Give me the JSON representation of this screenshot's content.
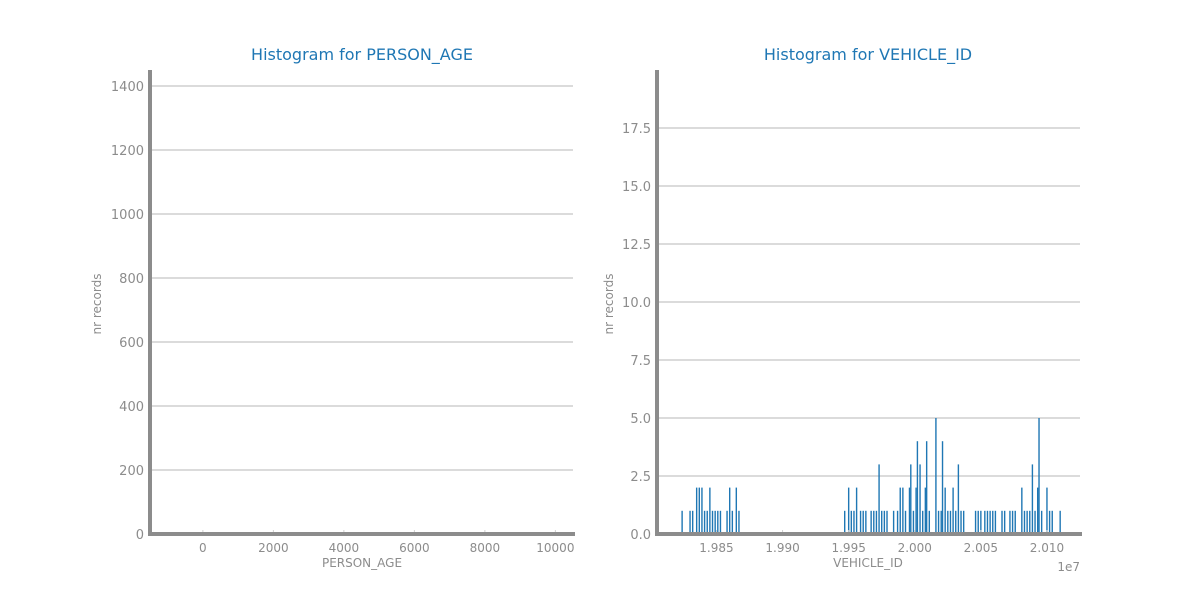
{
  "colors": {
    "bar": "#1f77b4",
    "title": "#1f77b4",
    "text": "#8c8c8c",
    "grid": "#cfcfcf",
    "spine": "#8c8c8c"
  },
  "chart_data": [
    {
      "type": "bar",
      "title": "Histogram for PERSON_AGE",
      "xlabel": "PERSON_AGE",
      "ylabel": "nr records",
      "xlim": [
        -1500,
        10500
      ],
      "ylim": [
        0,
        1450
      ],
      "xticks": [
        0,
        2000,
        4000,
        6000,
        8000,
        10000
      ],
      "xtick_labels": [
        "0",
        "2000",
        "4000",
        "6000",
        "8000",
        "10000"
      ],
      "yticks": [
        0,
        200,
        400,
        600,
        800,
        1000,
        1200,
        1400
      ],
      "ytick_labels": [
        "0",
        "200",
        "400",
        "600",
        "800",
        "1000",
        "1200",
        "1400"
      ],
      "grid": true,
      "bars": []
    },
    {
      "type": "bar",
      "title": "Histogram for VEHICLE_ID",
      "xlabel": "VEHICLE_ID",
      "ylabel": "nr records",
      "offset_label": "1e7",
      "xlim": [
        1.9805,
        2.0125
      ],
      "ylim": [
        0,
        20
      ],
      "xticks": [
        1.985,
        1.99,
        1.995,
        2.0,
        2.005,
        2.01
      ],
      "xtick_labels": [
        "1.985",
        "1.990",
        "1.995",
        "2.000",
        "2.005",
        "2.010"
      ],
      "yticks": [
        0,
        2.5,
        5,
        7.5,
        10,
        12.5,
        15,
        17.5
      ],
      "ytick_labels": [
        "0.0",
        "2.5",
        "5.0",
        "7.5",
        "10.0",
        "12.5",
        "15.0",
        "17.5"
      ],
      "grid": true,
      "bars": [
        {
          "x": 1.9824,
          "y": 1
        },
        {
          "x": 1.983,
          "y": 1
        },
        {
          "x": 1.9832,
          "y": 1
        },
        {
          "x": 1.9835,
          "y": 2
        },
        {
          "x": 1.9837,
          "y": 2
        },
        {
          "x": 1.9839,
          "y": 2
        },
        {
          "x": 1.9841,
          "y": 1
        },
        {
          "x": 1.9843,
          "y": 1
        },
        {
          "x": 1.9845,
          "y": 2
        },
        {
          "x": 1.9847,
          "y": 1
        },
        {
          "x": 1.9849,
          "y": 1
        },
        {
          "x": 1.9851,
          "y": 1
        },
        {
          "x": 1.9853,
          "y": 1
        },
        {
          "x": 1.9858,
          "y": 1
        },
        {
          "x": 1.986,
          "y": 2
        },
        {
          "x": 1.9862,
          "y": 1
        },
        {
          "x": 1.9865,
          "y": 2
        },
        {
          "x": 1.9867,
          "y": 1
        },
        {
          "x": 1.9947,
          "y": 1
        },
        {
          "x": 1.995,
          "y": 2
        },
        {
          "x": 1.9952,
          "y": 1
        },
        {
          "x": 1.9954,
          "y": 1
        },
        {
          "x": 1.9956,
          "y": 2
        },
        {
          "x": 1.9959,
          "y": 1
        },
        {
          "x": 1.9961,
          "y": 1
        },
        {
          "x": 1.9963,
          "y": 1
        },
        {
          "x": 1.9967,
          "y": 1
        },
        {
          "x": 1.9969,
          "y": 1
        },
        {
          "x": 1.9971,
          "y": 1
        },
        {
          "x": 1.9973,
          "y": 3
        },
        {
          "x": 1.9975,
          "y": 1
        },
        {
          "x": 1.9977,
          "y": 1
        },
        {
          "x": 1.9979,
          "y": 1
        },
        {
          "x": 1.9984,
          "y": 1
        },
        {
          "x": 1.9987,
          "y": 1
        },
        {
          "x": 1.9989,
          "y": 2
        },
        {
          "x": 1.9991,
          "y": 2
        },
        {
          "x": 1.9993,
          "y": 1
        },
        {
          "x": 1.9996,
          "y": 2
        },
        {
          "x": 1.9997,
          "y": 3
        },
        {
          "x": 1.9999,
          "y": 1
        },
        {
          "x": 2.0001,
          "y": 2
        },
        {
          "x": 2.0002,
          "y": 4
        },
        {
          "x": 2.0004,
          "y": 3
        },
        {
          "x": 2.0006,
          "y": 1
        },
        {
          "x": 2.0008,
          "y": 2
        },
        {
          "x": 2.0009,
          "y": 4
        },
        {
          "x": 2.0011,
          "y": 1
        },
        {
          "x": 2.0016,
          "y": 5
        },
        {
          "x": 2.0018,
          "y": 1
        },
        {
          "x": 2.002,
          "y": 1
        },
        {
          "x": 2.0021,
          "y": 4
        },
        {
          "x": 2.0023,
          "y": 2
        },
        {
          "x": 2.0025,
          "y": 1
        },
        {
          "x": 2.0027,
          "y": 1
        },
        {
          "x": 2.0029,
          "y": 2
        },
        {
          "x": 2.0031,
          "y": 1
        },
        {
          "x": 2.0033,
          "y": 3
        },
        {
          "x": 2.0035,
          "y": 1
        },
        {
          "x": 2.0037,
          "y": 1
        },
        {
          "x": 2.0046,
          "y": 1
        },
        {
          "x": 2.0048,
          "y": 1
        },
        {
          "x": 2.005,
          "y": 1
        },
        {
          "x": 2.0053,
          "y": 1
        },
        {
          "x": 2.0055,
          "y": 1
        },
        {
          "x": 2.0057,
          "y": 1
        },
        {
          "x": 2.0059,
          "y": 1
        },
        {
          "x": 2.0061,
          "y": 1
        },
        {
          "x": 2.0066,
          "y": 1
        },
        {
          "x": 2.0068,
          "y": 1
        },
        {
          "x": 2.0072,
          "y": 1
        },
        {
          "x": 2.0074,
          "y": 1
        },
        {
          "x": 2.0076,
          "y": 1
        },
        {
          "x": 2.0081,
          "y": 2
        },
        {
          "x": 2.0083,
          "y": 1
        },
        {
          "x": 2.0085,
          "y": 1
        },
        {
          "x": 2.0087,
          "y": 1
        },
        {
          "x": 2.0089,
          "y": 3
        },
        {
          "x": 2.0091,
          "y": 1
        },
        {
          "x": 2.0093,
          "y": 2
        },
        {
          "x": 2.0094,
          "y": 5
        },
        {
          "x": 2.0096,
          "y": 1
        },
        {
          "x": 2.01,
          "y": 2
        },
        {
          "x": 2.0102,
          "y": 1
        },
        {
          "x": 2.0104,
          "y": 1
        },
        {
          "x": 2.011,
          "y": 1
        }
      ]
    }
  ]
}
